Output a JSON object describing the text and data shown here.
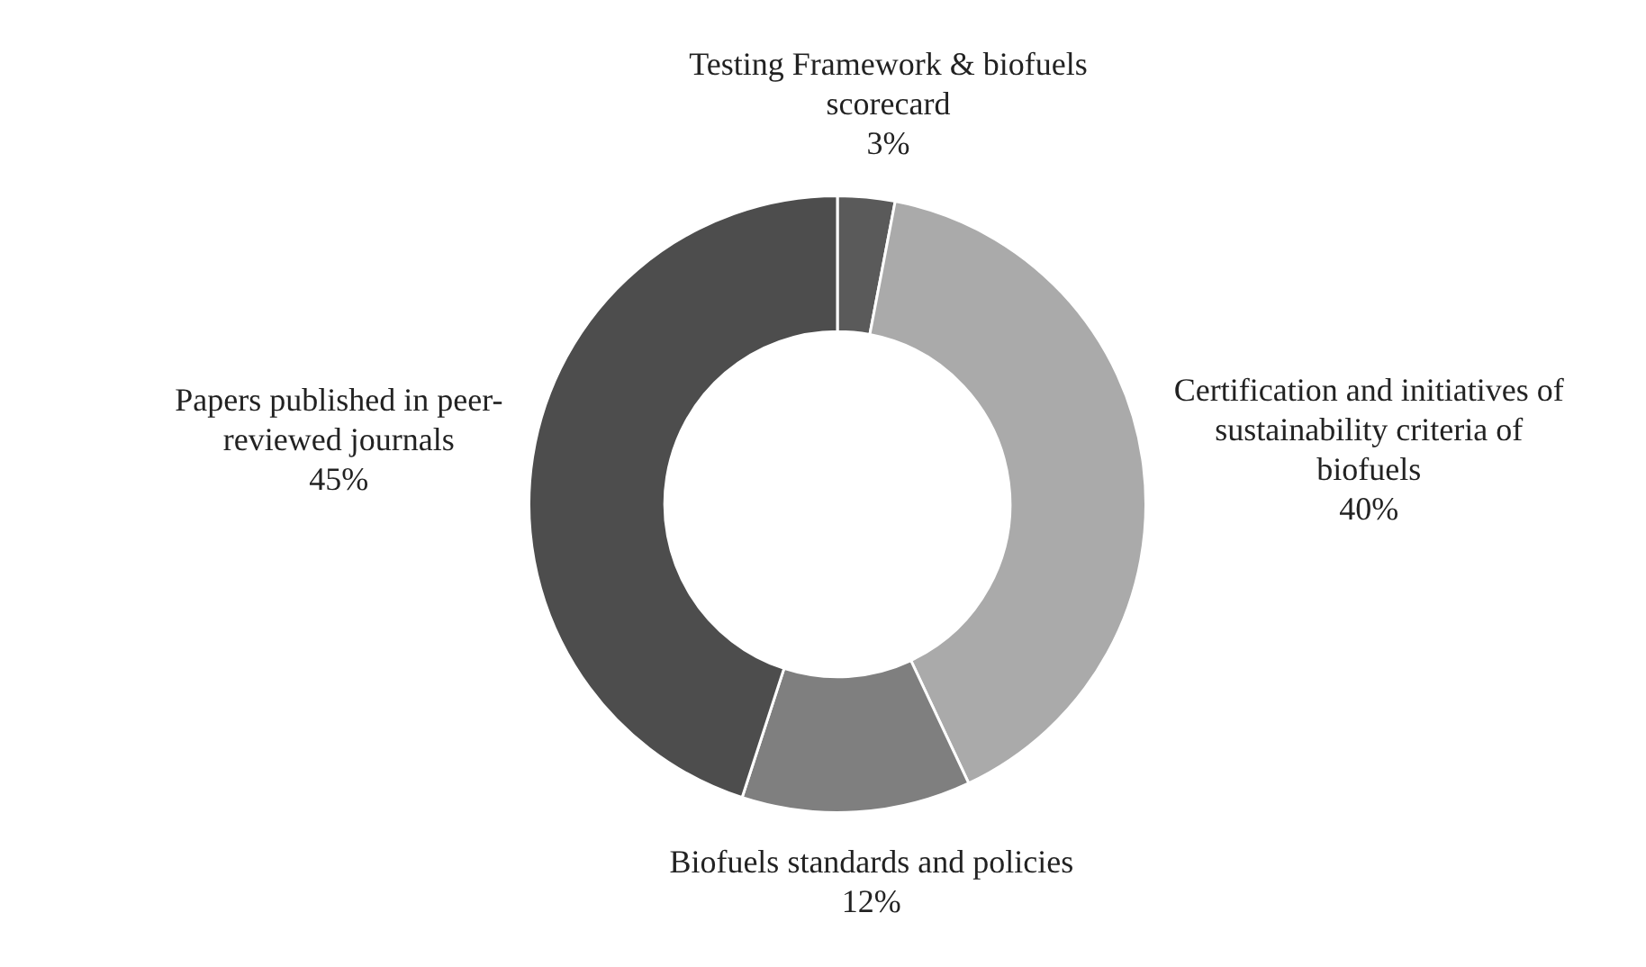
{
  "chart_data": {
    "type": "donut",
    "categories": [
      "Testing Framework & biofuels scorecard",
      "Certification and initiatives of sustainability criteria of biofuels",
      "Biofuels standards and policies",
      "Papers published in peer-reviewed journals"
    ],
    "values": [
      3,
      40,
      12,
      45
    ],
    "value_labels": [
      "3%",
      "40%",
      "12%",
      "45%"
    ],
    "colors": [
      "#5a5a5a",
      "#aaaaaa",
      "#7f7f7f",
      "#4d4d4d"
    ],
    "legend": false
  }
}
